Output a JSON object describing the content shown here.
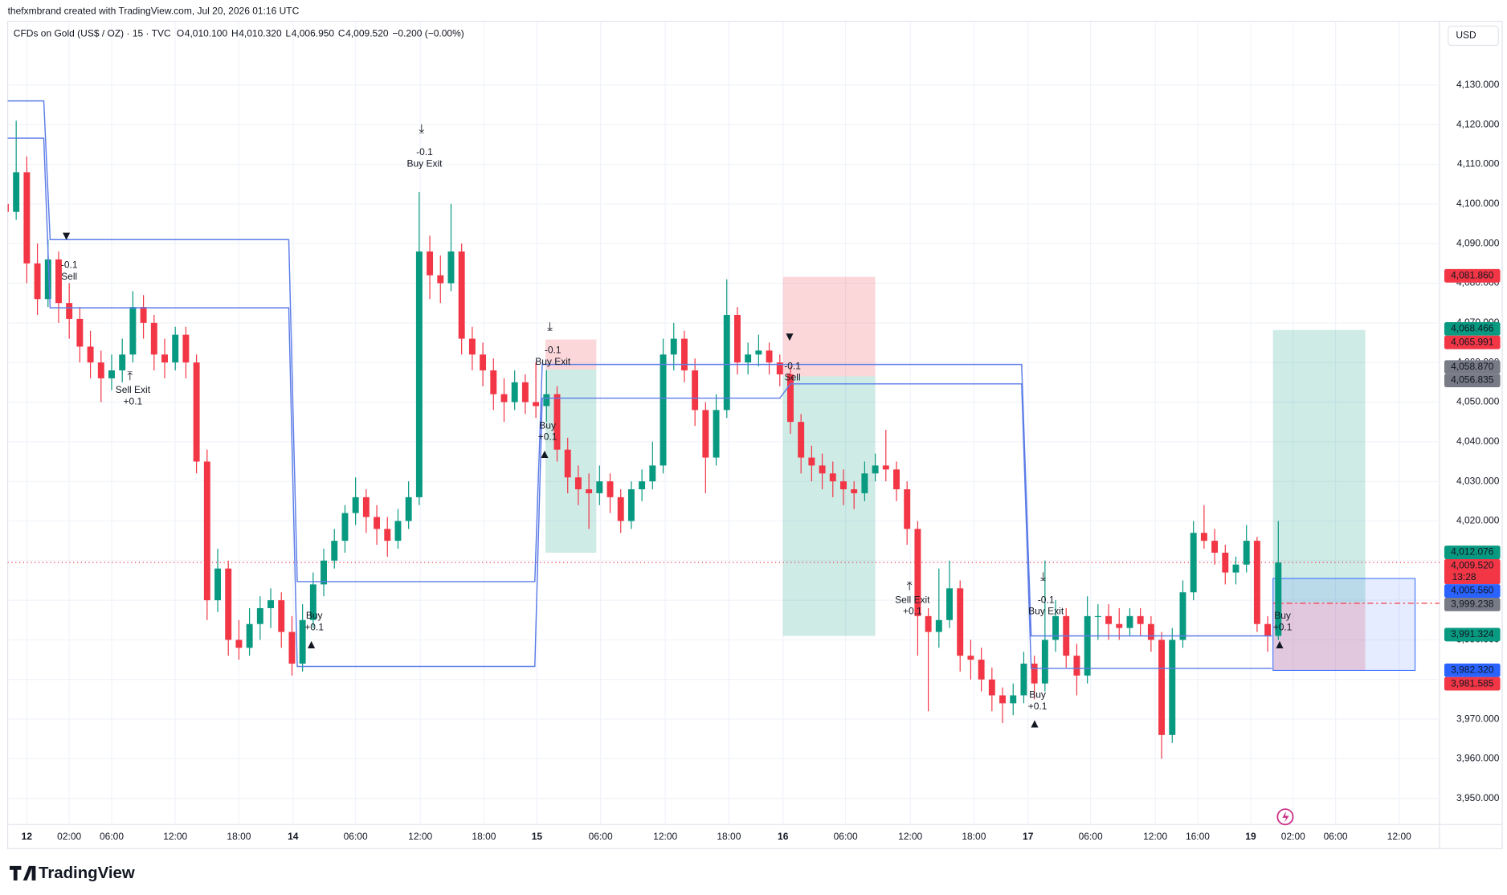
{
  "chart_data": {
    "type": "candlestick",
    "credit": "thefxmbrand created with TradingView.com, Jul 20, 2026 01:16 UTC",
    "title": "CFDs on Gold (US$ / OZ) · 15 · TVC",
    "ohlc_header": [
      {
        "key": "O",
        "value": "4,010.100"
      },
      {
        "key": "H",
        "value": "4,010.320"
      },
      {
        "key": "L",
        "value": "4,006.950"
      },
      {
        "key": "C",
        "value": "4,009.520"
      }
    ],
    "change": "−0.200 (−0.00%)",
    "currency": "USD",
    "brand": "TradingView",
    "up_color": "#089981",
    "down_color": "#f23645",
    "grid": true,
    "xlim": [
      -1.8,
      133.2
    ],
    "xticks": [
      {
        "value": 0,
        "label": "12"
      },
      {
        "value": 4,
        "label": "02:00"
      },
      {
        "value": 8,
        "label": "06:00"
      },
      {
        "value": 14,
        "label": "12:00"
      },
      {
        "value": 20,
        "label": "18:00"
      },
      {
        "value": 25.1,
        "label": "14"
      },
      {
        "value": 31,
        "label": "06:00"
      },
      {
        "value": 37.1,
        "label": "12:00"
      },
      {
        "value": 43.1,
        "label": "18:00"
      },
      {
        "value": 48.1,
        "label": "15"
      },
      {
        "value": 54.1,
        "label": "06:00"
      },
      {
        "value": 60.2,
        "label": "12:00"
      },
      {
        "value": 66.2,
        "label": "18:00"
      },
      {
        "value": 71.3,
        "label": "16"
      },
      {
        "value": 77.2,
        "label": "06:00"
      },
      {
        "value": 83.3,
        "label": "12:00"
      },
      {
        "value": 89.3,
        "label": "18:00"
      },
      {
        "value": 94.4,
        "label": "17"
      },
      {
        "value": 100.3,
        "label": "06:00"
      },
      {
        "value": 106.4,
        "label": "12:00"
      },
      {
        "value": 110.4,
        "label": "16:00"
      },
      {
        "value": 115.4,
        "label": "19"
      },
      {
        "value": 119.4,
        "label": "02:00"
      },
      {
        "value": 123.4,
        "label": "06:00"
      },
      {
        "value": 129.4,
        "label": "12:00"
      }
    ],
    "ylim": [
      3943.4,
      4140.5
    ],
    "yticks": [
      {
        "value": 3950,
        "label": "3,950.000"
      },
      {
        "value": 3960,
        "label": "3,960.000"
      },
      {
        "value": 3970,
        "label": "3,970.000"
      },
      {
        "value": 3980,
        "label": "3,980.000"
      },
      {
        "value": 3990,
        "label": "3,990.000"
      },
      {
        "value": 4000,
        "label": "4,000.000"
      },
      {
        "value": 4010,
        "label": "4,010.000"
      },
      {
        "value": 4020,
        "label": "4,020.000"
      },
      {
        "value": 4030,
        "label": "4,030.000"
      },
      {
        "value": 4040,
        "label": "4,040.000"
      },
      {
        "value": 4050,
        "label": "4,050.000"
      },
      {
        "value": 4060,
        "label": "4,060.000"
      },
      {
        "value": 4070,
        "label": "4,070.000"
      },
      {
        "value": 4080,
        "label": "4,080.000"
      },
      {
        "value": 4090,
        "label": "4,090.000"
      },
      {
        "value": 4100,
        "label": "4,100.000"
      },
      {
        "value": 4110,
        "label": "4,110.000"
      },
      {
        "value": 4120,
        "label": "4,120.000"
      },
      {
        "value": 4130,
        "label": "4,130.000"
      }
    ],
    "x": [
      -2,
      -1,
      0,
      1,
      2,
      3,
      4,
      5,
      6,
      7,
      8,
      9,
      10,
      11,
      12,
      13,
      14,
      15,
      16,
      17,
      18,
      19,
      20,
      21,
      22,
      23,
      24,
      25,
      26,
      27,
      28,
      29,
      30,
      31,
      32,
      33,
      34,
      35,
      36,
      37,
      38,
      39,
      40,
      41,
      42,
      43,
      44,
      45,
      46,
      47,
      48,
      49,
      50,
      51,
      52,
      53,
      54,
      55,
      56,
      57,
      58,
      59,
      60,
      61,
      62,
      63,
      64,
      65,
      66,
      67,
      68,
      69,
      70,
      71,
      72,
      73,
      74,
      75,
      76,
      77,
      78,
      79,
      80,
      81,
      82,
      83,
      84,
      85,
      86,
      87,
      88,
      89,
      90,
      91,
      92,
      93,
      94,
      95,
      96,
      97,
      98,
      99,
      100,
      101,
      102,
      103,
      104,
      105,
      106,
      107,
      108,
      109,
      110,
      111,
      112,
      113,
      114,
      115,
      116,
      117,
      118
    ],
    "candles": [
      [
        4100,
        4103,
        4095,
        4098
      ],
      [
        4098,
        4121,
        4096,
        4108
      ],
      [
        4108,
        4112,
        4080,
        4085
      ],
      [
        4085,
        4090,
        4072,
        4076
      ],
      [
        4076,
        4091,
        4074,
        4086
      ],
      [
        4086,
        4088,
        4070,
        4075
      ],
      [
        4075,
        4080,
        4066,
        4071
      ],
      [
        4071,
        4074,
        4060,
        4064
      ],
      [
        4064,
        4068,
        4056,
        4060
      ],
      [
        4060,
        4063,
        4050,
        4056
      ],
      [
        4056,
        4062,
        4053,
        4058
      ],
      [
        4058,
        4066,
        4055,
        4062
      ],
      [
        4062,
        4078,
        4060,
        4074
      ],
      [
        4074,
        4077,
        4066,
        4070
      ],
      [
        4070,
        4072,
        4058,
        4062
      ],
      [
        4062,
        4066,
        4056,
        4060
      ],
      [
        4060,
        4069,
        4058,
        4067
      ],
      [
        4067,
        4069,
        4056,
        4060
      ],
      [
        4060,
        4062,
        4032,
        4035
      ],
      [
        4035,
        4038,
        3995,
        4000
      ],
      [
        4000,
        4013,
        3997,
        4008
      ],
      [
        4008,
        4010,
        3986,
        3990
      ],
      [
        3990,
        3995,
        3985,
        3988
      ],
      [
        3988,
        3998,
        3986,
        3994
      ],
      [
        3994,
        4001,
        3990,
        3998
      ],
      [
        3998,
        4003,
        3993,
        4000
      ],
      [
        4000,
        4002,
        3988,
        3992
      ],
      [
        3992,
        3996,
        3981,
        3984
      ],
      [
        3984,
        3999,
        3982,
        3995
      ],
      [
        3995,
        4007,
        3993,
        4004
      ],
      [
        4004,
        4013,
        4001,
        4010
      ],
      [
        4010,
        4018,
        4008,
        4015
      ],
      [
        4015,
        4024,
        4012,
        4022
      ],
      [
        4022,
        4031,
        4019,
        4026
      ],
      [
        4026,
        4028,
        4017,
        4021
      ],
      [
        4021,
        4024,
        4014,
        4018
      ],
      [
        4018,
        4021,
        4011,
        4015
      ],
      [
        4015,
        4023,
        4013,
        4020
      ],
      [
        4020,
        4030,
        4018,
        4026
      ],
      [
        4026,
        4103,
        4024,
        4088
      ],
      [
        4088,
        4092,
        4076,
        4082
      ],
      [
        4082,
        4087,
        4075,
        4080
      ],
      [
        4080,
        4100,
        4078,
        4088
      ],
      [
        4088,
        4090,
        4062,
        4066
      ],
      [
        4066,
        4069,
        4058,
        4062
      ],
      [
        4062,
        4065,
        4054,
        4058
      ],
      [
        4058,
        4061,
        4048,
        4052
      ],
      [
        4052,
        4056,
        4045,
        4050
      ],
      [
        4050,
        4058,
        4048,
        4055
      ],
      [
        4055,
        4057,
        4047,
        4050
      ],
      [
        4050,
        4060,
        4046,
        4049
      ],
      [
        4049,
        4058,
        4045,
        4052
      ],
      [
        4052,
        4054,
        4035,
        4038
      ],
      [
        4038,
        4041,
        4027,
        4031
      ],
      [
        4031,
        4034,
        4024,
        4028
      ],
      [
        4028,
        4032,
        4018,
        4027
      ],
      [
        4027,
        4034,
        4024,
        4030
      ],
      [
        4030,
        4032,
        4022,
        4026
      ],
      [
        4026,
        4028,
        4017,
        4020
      ],
      [
        4020,
        4030,
        4018,
        4028
      ],
      [
        4028,
        4033,
        4025,
        4030
      ],
      [
        4030,
        4040,
        4028,
        4034
      ],
      [
        4034,
        4066,
        4032,
        4062
      ],
      [
        4062,
        4070,
        4058,
        4066
      ],
      [
        4066,
        4068,
        4055,
        4058
      ],
      [
        4058,
        4061,
        4044,
        4048
      ],
      [
        4048,
        4050,
        4027,
        4036
      ],
      [
        4036,
        4052,
        4034,
        4048
      ],
      [
        4048,
        4081,
        4046,
        4072
      ],
      [
        4072,
        4074,
        4057,
        4060
      ],
      [
        4060,
        4065,
        4057,
        4062
      ],
      [
        4062,
        4067,
        4059,
        4063
      ],
      [
        4063,
        4065,
        4057,
        4060
      ],
      [
        4060,
        4062,
        4054,
        4057
      ],
      [
        4057,
        4059,
        4042,
        4045
      ],
      [
        4045,
        4047,
        4032,
        4036
      ],
      [
        4036,
        4039,
        4030,
        4034
      ],
      [
        4034,
        4037,
        4028,
        4032
      ],
      [
        4032,
        4035,
        4026,
        4030
      ],
      [
        4030,
        4033,
        4024,
        4028
      ],
      [
        4028,
        4030,
        4023,
        4027
      ],
      [
        4027,
        4035,
        4025,
        4032
      ],
      [
        4032,
        4037,
        4030,
        4034
      ],
      [
        4034,
        4043,
        4030,
        4033
      ],
      [
        4033,
        4035,
        4025,
        4028
      ],
      [
        4028,
        4030,
        4014,
        4018
      ],
      [
        4018,
        4020,
        3986,
        3996
      ],
      [
        3996,
        3998,
        3972,
        3992
      ],
      [
        3992,
        4008,
        3988,
        3995
      ],
      [
        3995,
        4010,
        3993,
        4003
      ],
      [
        4003,
        4005,
        3982,
        3986
      ],
      [
        3986,
        3990,
        3980,
        3985
      ],
      [
        3985,
        3988,
        3977,
        3980
      ],
      [
        3980,
        3983,
        3972,
        3976
      ],
      [
        3976,
        3978,
        3969,
        3974
      ],
      [
        3974,
        3979,
        3971,
        3976
      ],
      [
        3976,
        3987,
        3974,
        3984
      ],
      [
        3984,
        3986,
        3975,
        3979
      ],
      [
        3979,
        4010,
        3977,
        3990
      ],
      [
        3990,
        4000,
        3987,
        3996
      ],
      [
        3996,
        3998,
        3983,
        3986
      ],
      [
        3986,
        3989,
        3976,
        3981
      ],
      [
        3981,
        4001,
        3979,
        3996
      ],
      [
        3996,
        3999,
        3990,
        3996
      ],
      [
        3996,
        3999,
        3990,
        3994
      ],
      [
        3994,
        3998,
        3990,
        3993
      ],
      [
        3993,
        3998,
        3991,
        3996
      ],
      [
        3996,
        3998,
        3991,
        3994
      ],
      [
        3994,
        3996,
        3987,
        3990
      ],
      [
        3990,
        3992,
        3960,
        3966
      ],
      [
        3966,
        3993,
        3964,
        3990
      ],
      [
        3990,
        4005,
        3988,
        4002
      ],
      [
        4002,
        4020,
        4000,
        4017
      ],
      [
        4017,
        4024,
        4013,
        4015
      ],
      [
        4015,
        4018,
        4009,
        4012
      ],
      [
        4012,
        4014,
        4004,
        4007
      ],
      [
        4007,
        4011,
        4004,
        4009
      ],
      [
        4009,
        4019,
        4007,
        4015
      ],
      [
        4015,
        4016,
        3992,
        3994
      ],
      [
        3994,
        3996,
        3987,
        3991
      ],
      [
        3991,
        4020,
        3990,
        4009.52
      ]
    ],
    "last_price": 4009.52,
    "lines": [
      {
        "color": "#5b7ce8",
        "x": [
          -1.8,
          1.6,
          2.2,
          24.7,
          25.5,
          47.9,
          48.6,
          93.8,
          94.7,
          117.4
        ],
        "values": [
          4126,
          4126,
          4091,
          4091,
          4004.7,
          4004.7,
          4059.5,
          4059.5,
          3991,
          3991
        ]
      },
      {
        "color": "#5b7ce8",
        "x": [
          -1.8,
          1.6,
          2.2,
          24.7,
          25.5,
          47.9,
          48.6,
          71,
          72,
          93.8,
          94.7,
          117.4
        ],
        "values": [
          4116.6,
          4116.6,
          4073.8,
          4073.8,
          3983.3,
          3983.3,
          4051,
          4051,
          4054.6,
          4054.6,
          3982.8,
          3982.8
        ]
      }
    ],
    "positions": [
      {
        "x": [
          48.9,
          53.7
        ],
        "stop": 4065.8,
        "entry": 4058.2,
        "target": 4012
      },
      {
        "x": [
          71.3,
          80
        ],
        "stop": 4081.6,
        "entry": 4056.5,
        "target": 3991
      },
      {
        "x": [
          117.5,
          126.2
        ],
        "stop": 3982.3,
        "entry": 3999.4,
        "target": 4068.2
      }
    ],
    "range_box": {
      "x": [
        117.5,
        130.9
      ],
      "top": 4005.5,
      "bottom": 3982.3
    },
    "stop_line": 3999.238,
    "annotations": [
      {
        "kind": "sell",
        "x": 4,
        "y": 4084.5,
        "lines": [
          "-0.1",
          "Sell"
        ]
      },
      {
        "kind": "sell-exit",
        "x": 10,
        "y": 4053,
        "lines": [
          "Sell Exit",
          "+0.1"
        ]
      },
      {
        "kind": "buy",
        "x": 27.1,
        "y": 3996,
        "lines": [
          "Buy",
          "+0.1"
        ]
      },
      {
        "kind": "buy-exit",
        "x": 37.5,
        "y": 4113,
        "lines": [
          "-0.1",
          "Buy Exit"
        ]
      },
      {
        "kind": "buy-exit",
        "x": 49.6,
        "y": 4063,
        "lines": [
          "-0.1",
          "Buy Exit"
        ]
      },
      {
        "kind": "buy",
        "x": 49.1,
        "y": 4044,
        "lines": [
          "Buy",
          "+0.1"
        ]
      },
      {
        "kind": "sell",
        "x": 72.2,
        "y": 4059,
        "lines": [
          "-0.1",
          "Sell"
        ]
      },
      {
        "kind": "sell-exit",
        "x": 83.5,
        "y": 4000,
        "lines": [
          "Sell Exit",
          "+0.1"
        ]
      },
      {
        "kind": "buy-exit",
        "x": 96.1,
        "y": 4000,
        "lines": [
          "-0.1",
          "Buy Exit"
        ]
      },
      {
        "kind": "buy",
        "x": 95.3,
        "y": 3976,
        "lines": [
          "Buy",
          "+0.1"
        ]
      },
      {
        "kind": "buy",
        "x": 118.4,
        "y": 3996,
        "lines": [
          "Buy",
          "+0.1"
        ]
      }
    ],
    "price_labels": [
      {
        "value": 4081.86,
        "label": "4,081.860",
        "color": "#f23645"
      },
      {
        "value": 4068.466,
        "label": "4,068.466",
        "color": "#089981"
      },
      {
        "value": 4065.991,
        "label": "4,065.991",
        "color": "#f23645"
      },
      {
        "value": 4058.87,
        "label": "4,058.870",
        "color": "#787b86"
      },
      {
        "value": 4056.835,
        "label": "4,056.835",
        "color": "#787b86"
      },
      {
        "value": 4012.076,
        "label": "4,012.076",
        "color": "#089981"
      },
      {
        "value": 4009.52,
        "label": "4,009.520",
        "color": "#f23645",
        "countdown": "13:28"
      },
      {
        "value": 4005.56,
        "label": "4,005.560",
        "color": "#2962ff"
      },
      {
        "value": 3999.238,
        "label": "3,999.238",
        "color": "#787b86"
      },
      {
        "value": 3991.324,
        "label": "3,991.324",
        "color": "#089981"
      },
      {
        "value": 3982.32,
        "label": "3,982.320",
        "color": "#2962ff"
      },
      {
        "value": 3981.585,
        "label": "3,981.585",
        "color": "#f23645"
      }
    ]
  }
}
